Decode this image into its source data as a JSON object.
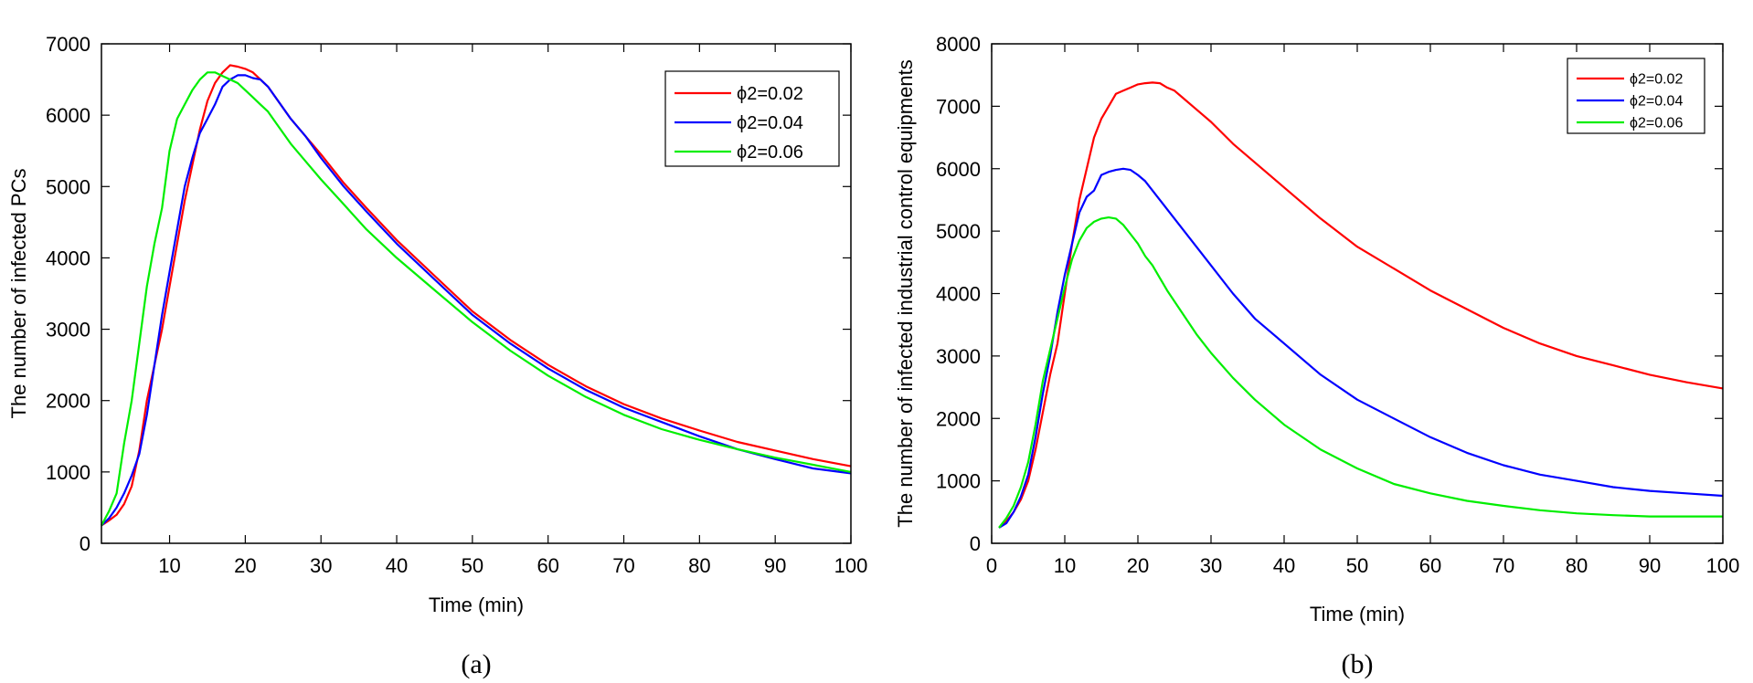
{
  "chart_data": [
    {
      "type": "line",
      "title": "",
      "caption": "(a)",
      "xlabel": "Time (min)",
      "ylabel": "The number of infected PCs",
      "xlim": [
        1,
        100
      ],
      "ylim": [
        0,
        7000
      ],
      "xticks": [
        10,
        20,
        30,
        40,
        50,
        60,
        70,
        80,
        90,
        100
      ],
      "yticks": [
        0,
        1000,
        2000,
        3000,
        4000,
        5000,
        6000,
        7000
      ],
      "legend_position": "top-right",
      "series": [
        {
          "name": "ϕ2=0.02",
          "color": "#ff0000",
          "x": [
            1,
            2,
            3,
            4,
            5,
            6,
            7,
            8,
            9,
            10,
            11,
            12,
            13,
            14,
            15,
            16,
            17,
            18,
            19,
            20,
            21,
            22,
            23,
            24,
            26,
            28,
            30,
            33,
            36,
            40,
            45,
            50,
            55,
            60,
            65,
            70,
            75,
            80,
            85,
            90,
            95,
            100
          ],
          "values": [
            250,
            320,
            400,
            550,
            800,
            1300,
            2000,
            2500,
            3000,
            3600,
            4200,
            4800,
            5300,
            5800,
            6200,
            6450,
            6600,
            6700,
            6680,
            6650,
            6600,
            6500,
            6400,
            6250,
            5950,
            5700,
            5450,
            5050,
            4700,
            4250,
            3750,
            3250,
            2850,
            2500,
            2200,
            1950,
            1750,
            1580,
            1420,
            1300,
            1180,
            1080
          ]
        },
        {
          "name": "ϕ2=0.04",
          "color": "#0000ff",
          "x": [
            1,
            2,
            3,
            4,
            5,
            6,
            7,
            8,
            9,
            10,
            11,
            12,
            13,
            14,
            15,
            16,
            17,
            18,
            19,
            20,
            21,
            22,
            23,
            24,
            26,
            28,
            30,
            33,
            36,
            40,
            45,
            50,
            55,
            60,
            65,
            70,
            75,
            80,
            85,
            90,
            95,
            100
          ],
          "values": [
            250,
            350,
            500,
            700,
            950,
            1250,
            1800,
            2500,
            3200,
            3800,
            4400,
            5000,
            5400,
            5750,
            5950,
            6150,
            6400,
            6500,
            6560,
            6560,
            6520,
            6500,
            6400,
            6250,
            5950,
            5700,
            5400,
            5000,
            4650,
            4200,
            3700,
            3200,
            2800,
            2450,
            2150,
            1900,
            1700,
            1500,
            1320,
            1180,
            1050,
            980
          ]
        },
        {
          "name": "ϕ2=0.06",
          "color": "#00ee00",
          "x": [
            1,
            2,
            3,
            4,
            5,
            6,
            7,
            8,
            9,
            10,
            11,
            12,
            13,
            14,
            15,
            16,
            17,
            18,
            19,
            20,
            21,
            22,
            23,
            24,
            26,
            28,
            30,
            33,
            36,
            40,
            45,
            50,
            55,
            60,
            65,
            70,
            75,
            80,
            85,
            90,
            95,
            100
          ],
          "values": [
            250,
            450,
            700,
            1400,
            2000,
            2800,
            3600,
            4200,
            4700,
            5500,
            5950,
            6150,
            6350,
            6500,
            6600,
            6600,
            6550,
            6500,
            6450,
            6350,
            6250,
            6150,
            6050,
            5900,
            5600,
            5350,
            5100,
            4750,
            4400,
            4000,
            3550,
            3100,
            2700,
            2350,
            2050,
            1800,
            1600,
            1450,
            1320,
            1200,
            1100,
            1000
          ]
        }
      ]
    },
    {
      "type": "line",
      "title": "",
      "caption": "(b)",
      "xlabel": "Time (min)",
      "ylabel": "The number of infected industrial control equipments",
      "xlim": [
        0,
        100
      ],
      "ylim": [
        0,
        8000
      ],
      "xticks": [
        0,
        10,
        20,
        30,
        40,
        50,
        60,
        70,
        80,
        90,
        100
      ],
      "yticks": [
        0,
        1000,
        2000,
        3000,
        4000,
        5000,
        6000,
        7000,
        8000
      ],
      "legend_position": "top-right",
      "series": [
        {
          "name": "ϕ2=0.02",
          "color": "#ff0000",
          "x": [
            1,
            2,
            3,
            4,
            5,
            6,
            7,
            8,
            9,
            10,
            11,
            12,
            13,
            14,
            15,
            16,
            17,
            18,
            19,
            20,
            21,
            22,
            23,
            24,
            25,
            26,
            28,
            30,
            33,
            36,
            40,
            45,
            50,
            55,
            60,
            65,
            70,
            75,
            80,
            85,
            90,
            95,
            100
          ],
          "values": [
            250,
            350,
            500,
            700,
            1000,
            1500,
            2100,
            2700,
            3200,
            4000,
            4800,
            5500,
            6000,
            6500,
            6800,
            7000,
            7200,
            7250,
            7300,
            7350,
            7370,
            7380,
            7370,
            7300,
            7250,
            7150,
            6950,
            6750,
            6400,
            6100,
            5700,
            5200,
            4750,
            4400,
            4050,
            3750,
            3450,
            3200,
            3000,
            2850,
            2700,
            2580,
            2480
          ]
        },
        {
          "name": "ϕ2=0.04",
          "color": "#0000ff",
          "x": [
            1,
            2,
            3,
            4,
            5,
            6,
            7,
            8,
            9,
            10,
            11,
            12,
            13,
            14,
            15,
            16,
            17,
            18,
            19,
            20,
            21,
            22,
            23,
            24,
            26,
            28,
            30,
            33,
            36,
            40,
            45,
            50,
            55,
            60,
            65,
            70,
            75,
            80,
            85,
            90,
            95,
            100
          ],
          "values": [
            250,
            320,
            500,
            750,
            1100,
            1700,
            2400,
            3000,
            3700,
            4300,
            4800,
            5300,
            5550,
            5650,
            5900,
            5950,
            5980,
            6000,
            5980,
            5900,
            5800,
            5650,
            5500,
            5350,
            5050,
            4750,
            4450,
            4000,
            3600,
            3200,
            2700,
            2300,
            2000,
            1700,
            1450,
            1250,
            1100,
            1000,
            900,
            840,
            800,
            760
          ]
        },
        {
          "name": "ϕ2=0.06",
          "color": "#00ee00",
          "x": [
            1,
            2,
            3,
            4,
            5,
            6,
            7,
            8,
            9,
            10,
            11,
            12,
            13,
            14,
            15,
            16,
            17,
            18,
            19,
            20,
            21,
            22,
            23,
            24,
            26,
            28,
            30,
            33,
            36,
            40,
            45,
            50,
            55,
            60,
            65,
            70,
            75,
            80,
            85,
            90,
            95,
            100
          ],
          "values": [
            250,
            400,
            600,
            900,
            1300,
            1900,
            2600,
            3100,
            3600,
            4100,
            4550,
            4850,
            5050,
            5150,
            5200,
            5220,
            5200,
            5100,
            4950,
            4800,
            4600,
            4450,
            4250,
            4050,
            3700,
            3350,
            3050,
            2650,
            2300,
            1900,
            1500,
            1200,
            950,
            800,
            680,
            600,
            530,
            480,
            450,
            430,
            430,
            430
          ]
        }
      ]
    }
  ]
}
